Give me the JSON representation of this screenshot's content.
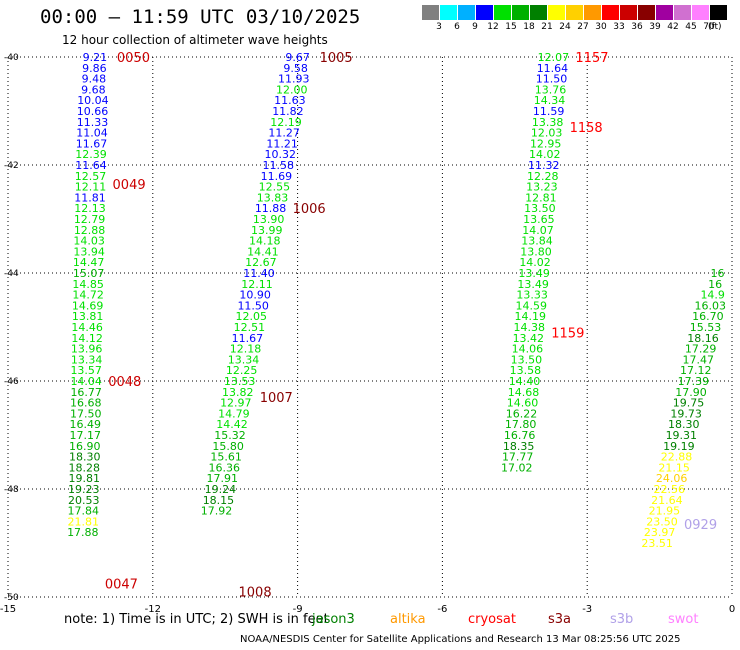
{
  "header": {
    "title": "00:00 – 11:59 UTC 03/10/2025",
    "subtitle": "12 hour collection of altimeter wave heights"
  },
  "colorbar": {
    "colors": [
      "#808080",
      "#00ffff",
      "#00b0ff",
      "#0000ff",
      "#00e000",
      "#00b000",
      "#008000",
      "#ffff00",
      "#ffd000",
      "#ff9900",
      "#ff0000",
      "#cc0000",
      "#880000",
      "#a000a0",
      "#d070d0",
      "#ff80ff",
      "#000000"
    ],
    "labels": [
      "3",
      "6",
      "9",
      "12",
      "15",
      "18",
      "21",
      "24",
      "27",
      "30",
      "33",
      "36",
      "39",
      "42",
      "45",
      "70"
    ],
    "unit": "(ft)"
  },
  "map": {
    "lon_ticks": [
      "-15",
      "-12",
      "-9",
      "-6",
      "-3",
      "0"
    ],
    "lat_ticks": [
      "-40",
      "-42",
      "-44",
      "-46",
      "-48",
      "-50"
    ]
  },
  "tracks": [
    {
      "id": "t1",
      "color_label": "#cc0000",
      "times": [
        {
          "text": "0050",
          "lat": -40.0
        },
        {
          "text": "0049",
          "lat": -42.35
        },
        {
          "text": "0048",
          "lat": -46.0
        },
        {
          "text": "0047",
          "lat": -49.75
        }
      ],
      "points": [
        {
          "lon": -13.2,
          "lat": -40.0,
          "v": "9.21"
        },
        {
          "lon": -13.21,
          "lat": -40.2,
          "v": "9.86"
        },
        {
          "lon": -13.22,
          "lat": -40.4,
          "v": "9.48"
        },
        {
          "lon": -13.23,
          "lat": -40.6,
          "v": "9.68"
        },
        {
          "lon": -13.24,
          "lat": -40.8,
          "v": "10.04"
        },
        {
          "lon": -13.25,
          "lat": -41.0,
          "v": "10.66"
        },
        {
          "lon": -13.25,
          "lat": -41.2,
          "v": "11.33"
        },
        {
          "lon": -13.26,
          "lat": -41.4,
          "v": "11.04"
        },
        {
          "lon": -13.27,
          "lat": -41.6,
          "v": "11.67"
        },
        {
          "lon": -13.28,
          "lat": -41.8,
          "v": "12.39"
        },
        {
          "lon": -13.28,
          "lat": -42.0,
          "v": "11.64"
        },
        {
          "lon": -13.29,
          "lat": -42.2,
          "v": "12.57"
        },
        {
          "lon": -13.29,
          "lat": -42.4,
          "v": "12.11"
        },
        {
          "lon": -13.3,
          "lat": -42.6,
          "v": "11.81"
        },
        {
          "lon": -13.3,
          "lat": -42.8,
          "v": "12.13"
        },
        {
          "lon": -13.31,
          "lat": -43.0,
          "v": "12.79"
        },
        {
          "lon": -13.31,
          "lat": -43.2,
          "v": "12.88"
        },
        {
          "lon": -13.32,
          "lat": -43.4,
          "v": "14.03"
        },
        {
          "lon": -13.32,
          "lat": -43.6,
          "v": "13.94"
        },
        {
          "lon": -13.33,
          "lat": -43.8,
          "v": "14.47"
        },
        {
          "lon": -13.33,
          "lat": -44.0,
          "v": "15.07"
        },
        {
          "lon": -13.34,
          "lat": -44.2,
          "v": "14.85"
        },
        {
          "lon": -13.34,
          "lat": -44.4,
          "v": "14.72"
        },
        {
          "lon": -13.35,
          "lat": -44.6,
          "v": "14.69"
        },
        {
          "lon": -13.35,
          "lat": -44.8,
          "v": "13.81"
        },
        {
          "lon": -13.36,
          "lat": -45.0,
          "v": "14.46"
        },
        {
          "lon": -13.36,
          "lat": -45.2,
          "v": "14.12"
        },
        {
          "lon": -13.37,
          "lat": -45.4,
          "v": "13.96"
        },
        {
          "lon": -13.37,
          "lat": -45.6,
          "v": "13.34"
        },
        {
          "lon": -13.38,
          "lat": -45.8,
          "v": "13.57"
        },
        {
          "lon": -13.38,
          "lat": -46.0,
          "v": "14.04"
        },
        {
          "lon": -13.38,
          "lat": -46.2,
          "v": "16.77"
        },
        {
          "lon": -13.39,
          "lat": -46.4,
          "v": "16.68"
        },
        {
          "lon": -13.39,
          "lat": -46.6,
          "v": "17.50"
        },
        {
          "lon": -13.4,
          "lat": -46.8,
          "v": "16.49"
        },
        {
          "lon": -13.4,
          "lat": -47.0,
          "v": "17.17"
        },
        {
          "lon": -13.41,
          "lat": -47.2,
          "v": "16.90"
        },
        {
          "lon": -13.41,
          "lat": -47.4,
          "v": "18.30"
        },
        {
          "lon": -13.42,
          "lat": -47.6,
          "v": "18.28"
        },
        {
          "lon": -13.42,
          "lat": -47.8,
          "v": "19.81"
        },
        {
          "lon": -13.43,
          "lat": -48.0,
          "v": "19.23"
        },
        {
          "lon": -13.43,
          "lat": -48.2,
          "v": "20.53"
        },
        {
          "lon": -13.44,
          "lat": -48.4,
          "v": "17.84"
        },
        {
          "lon": -13.44,
          "lat": -48.6,
          "v": "21.81"
        },
        {
          "lon": -13.45,
          "lat": -48.8,
          "v": "17.88"
        }
      ]
    },
    {
      "id": "t2",
      "color_label": "#880000",
      "times": [
        {
          "text": "1005",
          "lat": -40.0
        },
        {
          "text": "1006",
          "lat": -42.8
        },
        {
          "text": "1007",
          "lat": -46.3
        },
        {
          "text": "1008",
          "lat": -49.9
        }
      ],
      "points": [
        {
          "lon": -9.0,
          "lat": -40.0,
          "v": "9.67"
        },
        {
          "lon": -9.04,
          "lat": -40.2,
          "v": "9.58"
        },
        {
          "lon": -9.08,
          "lat": -40.4,
          "v": "11.93"
        },
        {
          "lon": -9.12,
          "lat": -40.6,
          "v": "12.00"
        },
        {
          "lon": -9.16,
          "lat": -40.8,
          "v": "11.63"
        },
        {
          "lon": -9.2,
          "lat": -41.0,
          "v": "11.82"
        },
        {
          "lon": -9.24,
          "lat": -41.2,
          "v": "12.19"
        },
        {
          "lon": -9.28,
          "lat": -41.4,
          "v": "11.27"
        },
        {
          "lon": -9.32,
          "lat": -41.6,
          "v": "11.21"
        },
        {
          "lon": -9.36,
          "lat": -41.8,
          "v": "10.32"
        },
        {
          "lon": -9.4,
          "lat": -42.0,
          "v": "11.58"
        },
        {
          "lon": -9.44,
          "lat": -42.2,
          "v": "11.69"
        },
        {
          "lon": -9.48,
          "lat": -42.4,
          "v": "12.55"
        },
        {
          "lon": -9.52,
          "lat": -42.6,
          "v": "13.83"
        },
        {
          "lon": -9.56,
          "lat": -42.8,
          "v": "11.88"
        },
        {
          "lon": -9.6,
          "lat": -43.0,
          "v": "13.90"
        },
        {
          "lon": -9.64,
          "lat": -43.2,
          "v": "13.99"
        },
        {
          "lon": -9.68,
          "lat": -43.4,
          "v": "14.18"
        },
        {
          "lon": -9.72,
          "lat": -43.6,
          "v": "14.41"
        },
        {
          "lon": -9.76,
          "lat": -43.8,
          "v": "12.67"
        },
        {
          "lon": -9.8,
          "lat": -44.0,
          "v": "11.40"
        },
        {
          "lon": -9.84,
          "lat": -44.2,
          "v": "12.11"
        },
        {
          "lon": -9.88,
          "lat": -44.4,
          "v": "10.90"
        },
        {
          "lon": -9.92,
          "lat": -44.6,
          "v": "11.50"
        },
        {
          "lon": -9.96,
          "lat": -44.8,
          "v": "12.05"
        },
        {
          "lon": -10.0,
          "lat": -45.0,
          "v": "12.51"
        },
        {
          "lon": -10.04,
          "lat": -45.2,
          "v": "11.67"
        },
        {
          "lon": -10.08,
          "lat": -45.4,
          "v": "12.18"
        },
        {
          "lon": -10.12,
          "lat": -45.6,
          "v": "13.34"
        },
        {
          "lon": -10.16,
          "lat": -45.8,
          "v": "12.25"
        },
        {
          "lon": -10.2,
          "lat": -46.0,
          "v": "13.53"
        },
        {
          "lon": -10.24,
          "lat": -46.2,
          "v": "13.82"
        },
        {
          "lon": -10.28,
          "lat": -46.4,
          "v": "12.97"
        },
        {
          "lon": -10.32,
          "lat": -46.6,
          "v": "14.79"
        },
        {
          "lon": -10.36,
          "lat": -46.8,
          "v": "14.42"
        },
        {
          "lon": -10.4,
          "lat": -47.0,
          "v": "15.32"
        },
        {
          "lon": -10.44,
          "lat": -47.2,
          "v": "15.80"
        },
        {
          "lon": -10.48,
          "lat": -47.4,
          "v": "15.61"
        },
        {
          "lon": -10.52,
          "lat": -47.6,
          "v": "16.36"
        },
        {
          "lon": -10.56,
          "lat": -47.8,
          "v": "17.91"
        },
        {
          "lon": -10.6,
          "lat": -48.0,
          "v": "19.24"
        },
        {
          "lon": -10.64,
          "lat": -48.2,
          "v": "18.15"
        },
        {
          "lon": -10.68,
          "lat": -48.4,
          "v": "17.92"
        }
      ]
    },
    {
      "id": "t3",
      "color_label": "#ff0000",
      "times": [
        {
          "text": "1157",
          "lat": -40.0
        },
        {
          "text": "1158",
          "lat": -41.3
        },
        {
          "text": "1159",
          "lat": -45.1
        }
      ],
      "points": [
        {
          "lon": -3.7,
          "lat": -40.0,
          "v": "12.07"
        },
        {
          "lon": -3.72,
          "lat": -40.2,
          "v": "11.64"
        },
        {
          "lon": -3.74,
          "lat": -40.4,
          "v": "11.50"
        },
        {
          "lon": -3.76,
          "lat": -40.6,
          "v": "13.76"
        },
        {
          "lon": -3.78,
          "lat": -40.8,
          "v": "14.34"
        },
        {
          "lon": -3.8,
          "lat": -41.0,
          "v": "11.59"
        },
        {
          "lon": -3.82,
          "lat": -41.2,
          "v": "13.38"
        },
        {
          "lon": -3.84,
          "lat": -41.4,
          "v": "12.03"
        },
        {
          "lon": -3.86,
          "lat": -41.6,
          "v": "12.95"
        },
        {
          "lon": -3.88,
          "lat": -41.8,
          "v": "14.02"
        },
        {
          "lon": -3.9,
          "lat": -42.0,
          "v": "11.32"
        },
        {
          "lon": -3.92,
          "lat": -42.2,
          "v": "12.28"
        },
        {
          "lon": -3.94,
          "lat": -42.4,
          "v": "13.23"
        },
        {
          "lon": -3.96,
          "lat": -42.6,
          "v": "12.81"
        },
        {
          "lon": -3.98,
          "lat": -42.8,
          "v": "13.50"
        },
        {
          "lon": -4.0,
          "lat": -43.0,
          "v": "13.65"
        },
        {
          "lon": -4.02,
          "lat": -43.2,
          "v": "14.07"
        },
        {
          "lon": -4.04,
          "lat": -43.4,
          "v": "13.84"
        },
        {
          "lon": -4.06,
          "lat": -43.6,
          "v": "13.80"
        },
        {
          "lon": -4.08,
          "lat": -43.8,
          "v": "14.02"
        },
        {
          "lon": -4.1,
          "lat": -44.0,
          "v": "13.49"
        },
        {
          "lon": -4.12,
          "lat": -44.2,
          "v": "13.49"
        },
        {
          "lon": -4.14,
          "lat": -44.4,
          "v": "13.33"
        },
        {
          "lon": -4.16,
          "lat": -44.6,
          "v": "14.59"
        },
        {
          "lon": -4.18,
          "lat": -44.8,
          "v": "14.19"
        },
        {
          "lon": -4.2,
          "lat": -45.0,
          "v": "14.38"
        },
        {
          "lon": -4.22,
          "lat": -45.2,
          "v": "13.42"
        },
        {
          "lon": -4.24,
          "lat": -45.4,
          "v": "14.06"
        },
        {
          "lon": -4.26,
          "lat": -45.6,
          "v": "13.50"
        },
        {
          "lon": -4.28,
          "lat": -45.8,
          "v": "13.58"
        },
        {
          "lon": -4.3,
          "lat": -46.0,
          "v": "14.40"
        },
        {
          "lon": -4.32,
          "lat": -46.2,
          "v": "14.68"
        },
        {
          "lon": -4.34,
          "lat": -46.4,
          "v": "14.60"
        },
        {
          "lon": -4.36,
          "lat": -46.6,
          "v": "16.22"
        },
        {
          "lon": -4.38,
          "lat": -46.8,
          "v": "17.80"
        },
        {
          "lon": -4.4,
          "lat": -47.0,
          "v": "16.76"
        },
        {
          "lon": -4.42,
          "lat": -47.2,
          "v": "18.35"
        },
        {
          "lon": -4.44,
          "lat": -47.4,
          "v": "17.77"
        },
        {
          "lon": -4.46,
          "lat": -47.6,
          "v": "17.02"
        }
      ]
    },
    {
      "id": "t4",
      "color_label": "#b0a0e8",
      "times": [
        {
          "text": "0929",
          "lat": -48.65
        }
      ],
      "points": [
        {
          "lon": -0.3,
          "lat": -44.0,
          "v": "16"
        },
        {
          "lon": -0.35,
          "lat": -44.2,
          "v": "16"
        },
        {
          "lon": -0.4,
          "lat": -44.4,
          "v": "14.9"
        },
        {
          "lon": -0.45,
          "lat": -44.6,
          "v": "16.03"
        },
        {
          "lon": -0.5,
          "lat": -44.8,
          "v": "16.70"
        },
        {
          "lon": -0.55,
          "lat": -45.0,
          "v": "15.53"
        },
        {
          "lon": -0.6,
          "lat": -45.2,
          "v": "18.16"
        },
        {
          "lon": -0.65,
          "lat": -45.4,
          "v": "17.29"
        },
        {
          "lon": -0.7,
          "lat": -45.6,
          "v": "17.47"
        },
        {
          "lon": -0.75,
          "lat": -45.8,
          "v": "17.12"
        },
        {
          "lon": -0.8,
          "lat": -46.0,
          "v": "17.39"
        },
        {
          "lon": -0.85,
          "lat": -46.2,
          "v": "17.90"
        },
        {
          "lon": -0.9,
          "lat": -46.4,
          "v": "19.75"
        },
        {
          "lon": -0.95,
          "lat": -46.6,
          "v": "19.73"
        },
        {
          "lon": -1.0,
          "lat": -46.8,
          "v": "18.30"
        },
        {
          "lon": -1.05,
          "lat": -47.0,
          "v": "19.31"
        },
        {
          "lon": -1.1,
          "lat": -47.2,
          "v": "19.19"
        },
        {
          "lon": -1.15,
          "lat": -47.4,
          "v": "22.88"
        },
        {
          "lon": -1.2,
          "lat": -47.6,
          "v": "21.15"
        },
        {
          "lon": -1.25,
          "lat": -47.8,
          "v": "24.06"
        },
        {
          "lon": -1.3,
          "lat": -48.0,
          "v": "22.56"
        },
        {
          "lon": -1.35,
          "lat": -48.2,
          "v": "21.64"
        },
        {
          "lon": -1.4,
          "lat": -48.4,
          "v": "21.95"
        },
        {
          "lon": -1.45,
          "lat": -48.6,
          "v": "23.50"
        },
        {
          "lon": -1.5,
          "lat": -48.8,
          "v": "23.97"
        },
        {
          "lon": -1.55,
          "lat": -49.0,
          "v": "23.51"
        }
      ]
    }
  ],
  "footer": {
    "note": "note:  1) Time is in UTC;  2) SWH is in feet",
    "credit": "NOAA/NESDIS Center for Satellite Applications and Research    13 Mar 08:25:56 UTC 2025",
    "satellites": [
      {
        "name": "jason3",
        "color": "#008000"
      },
      {
        "name": "altika",
        "color": "#ff9900"
      },
      {
        "name": "cryosat",
        "color": "#ff0000"
      },
      {
        "name": "s3a",
        "color": "#880000"
      },
      {
        "name": "s3b",
        "color": "#b0a0e8"
      },
      {
        "name": "swot",
        "color": "#ff80ff"
      }
    ]
  }
}
